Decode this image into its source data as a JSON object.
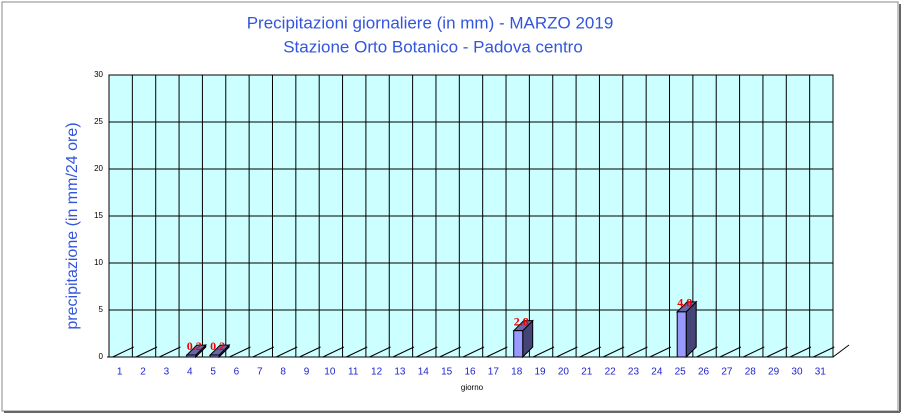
{
  "chart_data": {
    "type": "bar3d",
    "title": "Precipitazioni giornaliere (in mm) - MARZO 2019",
    "subtitle": "Stazione Orto Botanico - Padova centro",
    "y_label": "precipitazione (in mm/24 ore)",
    "x_label": "giorno",
    "categories": [
      "1",
      "2",
      "3",
      "4",
      "5",
      "6",
      "7",
      "8",
      "9",
      "10",
      "11",
      "12",
      "13",
      "14",
      "15",
      "16",
      "17",
      "18",
      "19",
      "20",
      "21",
      "22",
      "23",
      "24",
      "25",
      "26",
      "27",
      "28",
      "29",
      "30",
      "31"
    ],
    "values": [
      0,
      0,
      0,
      0.2,
      0.2,
      0,
      0,
      0,
      0,
      0,
      0,
      0,
      0,
      0,
      0,
      0,
      0,
      2.8,
      0,
      0,
      0,
      0,
      0,
      0,
      4.8,
      0,
      0,
      0,
      0,
      0,
      0
    ],
    "color": "#9999ff",
    "ylim": [
      0,
      30
    ],
    "yticks": [
      0,
      5,
      10,
      15,
      20,
      25,
      30
    ],
    "grid": true
  }
}
